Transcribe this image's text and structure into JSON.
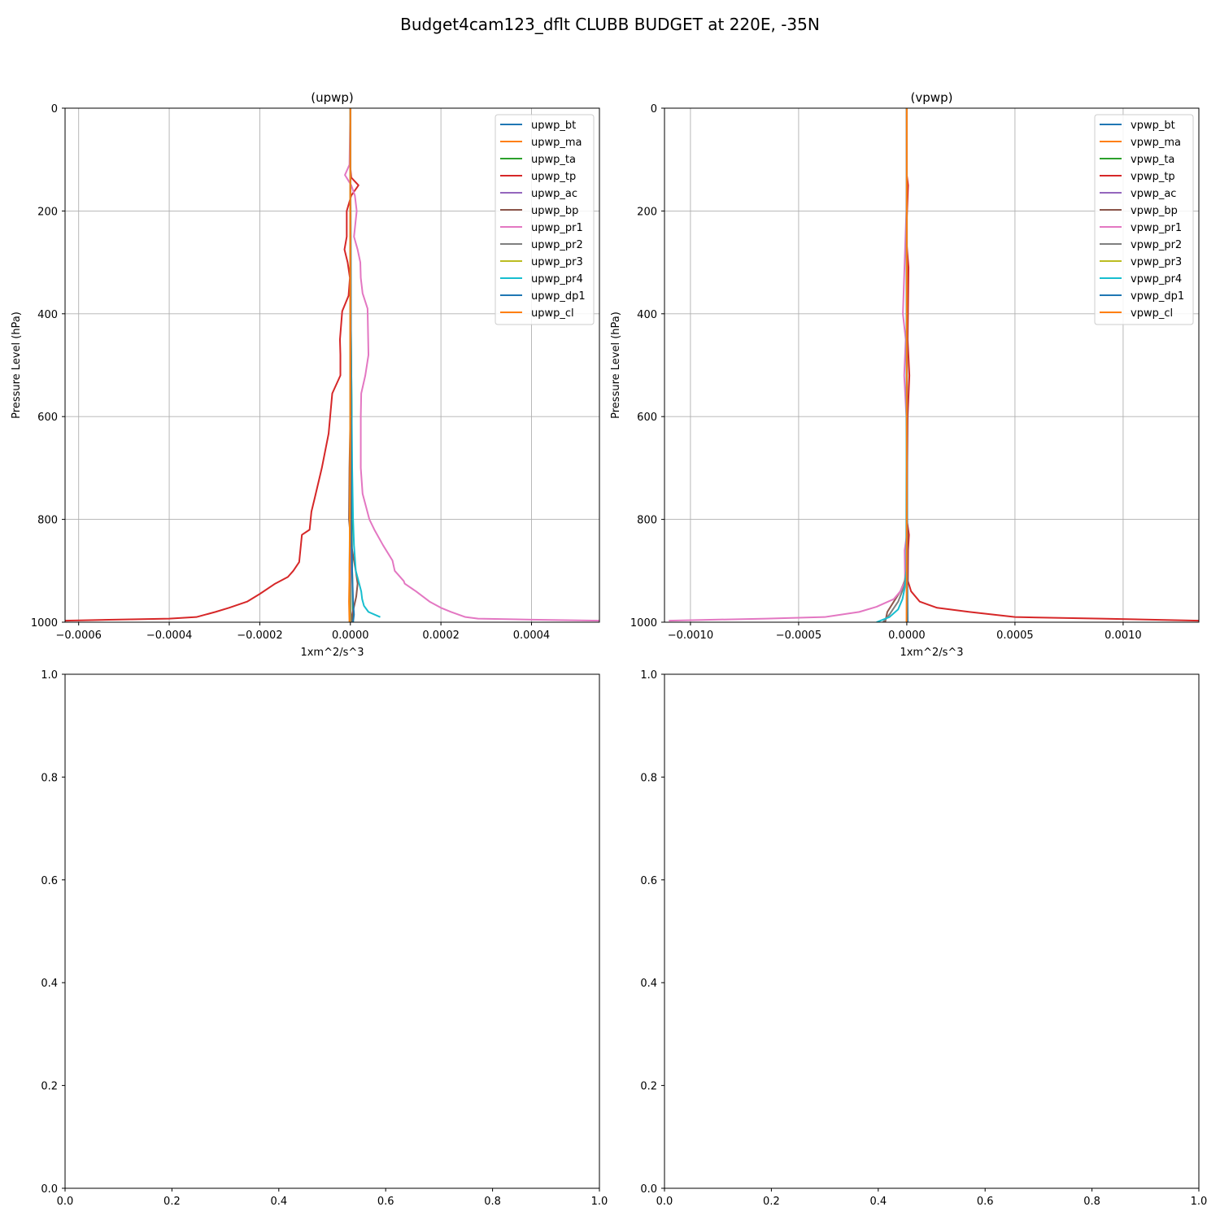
{
  "figure": {
    "title": "Budget4cam123_dflt CLUBB BUDGET at 220E, -35N"
  },
  "chart_data": [
    {
      "type": "line",
      "title": "(upwp)",
      "xlabel": "1xm^2/s^3",
      "ylabel": "Pressure Level (hPa)",
      "xlim": [
        -0.00063,
        0.00055
      ],
      "ylim": [
        1000,
        0
      ],
      "y_inverted": true,
      "grid": true,
      "legend_position": "top-right",
      "x_ticks": [
        -0.0006,
        -0.0004,
        -0.0002,
        0.0,
        0.0002,
        0.0004
      ],
      "x_tick_labels": [
        "−0.0006",
        "−0.0004",
        "−0.0002",
        "0.0000",
        "0.0002",
        "0.0004"
      ],
      "y_ticks": [
        0,
        200,
        400,
        600,
        800,
        1000
      ],
      "y_tick_labels": [
        "0",
        "200",
        "400",
        "600",
        "800",
        "1000"
      ],
      "series": [
        {
          "name": "upwp_bt",
          "color": "#1f77b4",
          "x": [
            0,
            0
          ],
          "y": [
            0,
            1000
          ]
        },
        {
          "name": "upwp_ma",
          "color": "#ff7f0e",
          "x": [
            0,
            0
          ],
          "y": [
            0,
            1000
          ]
        },
        {
          "name": "upwp_ta",
          "color": "#2ca02c",
          "x": [
            0,
            1e-06,
            2e-06,
            3e-06,
            3e-06,
            4e-06,
            6e-06
          ],
          "y": [
            0,
            400,
            500,
            600,
            800,
            900,
            1000
          ]
        },
        {
          "name": "upwp_tp",
          "color": "#d62728",
          "x": [
            0,
            0,
            2e-06,
            1.8e-05,
            2e-06,
            -8e-06,
            -8e-06,
            -1.3e-05,
            -6e-06,
            -1e-06,
            -4e-06,
            -1.8e-05,
            -2.3e-05,
            -2.2e-05,
            -2.2e-05,
            -4e-05,
            -4.8e-05,
            -6.3e-05,
            -7.8e-05,
            -8.6e-05,
            -9e-05,
            -0.000107,
            -0.000113,
            -0.000126,
            -0.000138,
            -0.000166,
            -0.0002,
            -0.000228,
            -0.000268,
            -0.000298,
            -0.00034,
            -0.0004,
            -0.00063
          ],
          "y": [
            0,
            115,
            135,
            150,
            170,
            200,
            250,
            275,
            300,
            330,
            365,
            395,
            450,
            480,
            520,
            555,
            633,
            700,
            756,
            785,
            820,
            830,
            883,
            900,
            912,
            925,
            945,
            960,
            972,
            980,
            990,
            993,
            997
          ]
        },
        {
          "name": "upwp_ac",
          "color": "#9467bd",
          "x": [
            0,
            0
          ],
          "y": [
            0,
            1000
          ]
        },
        {
          "name": "upwp_bp",
          "color": "#8c564b",
          "x": [
            0,
            0,
            -2e-06,
            -3e-06,
            2e-06,
            1.2e-05,
            1.6e-05,
            1.3e-05,
            8e-06,
            4e-06,
            2e-06
          ],
          "y": [
            0,
            600,
            700,
            800,
            850,
            900,
            925,
            950,
            970,
            985,
            1000
          ]
        },
        {
          "name": "upwp_pr1",
          "color": "#e377c2",
          "x": [
            0,
            -2e-06,
            -1.2e-05,
            2e-06,
            1e-05,
            1.4e-05,
            8e-06,
            1.6e-05,
            2.2e-05,
            2.3e-05,
            2.7e-05,
            3.8e-05,
            4e-05,
            3.3e-05,
            2.4e-05,
            2.3e-05,
            2.3e-05,
            2.7e-05,
            4.2e-05,
            5.3e-05,
            7.2e-05,
            9.3e-05,
            9.8e-05,
            0.000118,
            0.00012,
            0.000145,
            0.000175,
            0.0002,
            0.000222,
            0.000254,
            0.000282,
            0.0004,
            0.00055
          ],
          "y": [
            0,
            110,
            130,
            150,
            170,
            200,
            250,
            275,
            300,
            330,
            360,
            390,
            480,
            520,
            555,
            600,
            700,
            750,
            800,
            820,
            850,
            880,
            900,
            920,
            925,
            940,
            960,
            972,
            980,
            990,
            993,
            995,
            997
          ]
        },
        {
          "name": "upwp_pr2",
          "color": "#7f7f7f",
          "x": [
            0,
            0,
            -1e-06,
            -2e-06,
            0,
            1e-06
          ],
          "y": [
            0,
            600,
            800,
            900,
            960,
            1000
          ]
        },
        {
          "name": "upwp_pr3",
          "color": "#bcbd22",
          "x": [
            0,
            0,
            -1e-06,
            -2e-06,
            -1e-06
          ],
          "y": [
            0,
            600,
            800,
            950,
            1000
          ]
        },
        {
          "name": "upwp_pr4",
          "color": "#17becf",
          "x": [
            0,
            1e-06,
            2e-06,
            4e-06,
            6e-06,
            8e-06,
            1.2e-05,
            1.8e-05,
            2.4e-05,
            2.6e-05,
            3e-05,
            4e-05,
            6.6e-05
          ],
          "y": [
            0,
            400,
            500,
            700,
            800,
            850,
            900,
            920,
            940,
            955,
            968,
            980,
            990
          ]
        },
        {
          "name": "upwp_dp1",
          "color": "#1f77b4",
          "x": [
            0,
            2e-06,
            4e-06,
            6e-06,
            8e-06,
            6e-06
          ],
          "y": [
            0,
            800,
            900,
            960,
            985,
            1000
          ]
        },
        {
          "name": "upwp_cl",
          "color": "#ff7f0e",
          "x": [
            0,
            0,
            -1e-06,
            -3e-06,
            -2e-06
          ],
          "y": [
            0,
            600,
            850,
            960,
            1000
          ]
        }
      ]
    },
    {
      "type": "line",
      "title": "(vpwp)",
      "xlabel": "1xm^2/s^3",
      "ylabel": "Pressure Level (hPa)",
      "xlim": [
        -0.00112,
        0.00135
      ],
      "ylim": [
        1000,
        0
      ],
      "y_inverted": true,
      "grid": true,
      "legend_position": "top-right",
      "x_ticks": [
        -0.001,
        -0.0005,
        0.0,
        0.0005,
        0.001
      ],
      "x_tick_labels": [
        "−0.0010",
        "−0.0005",
        "0.0000",
        "0.0005",
        "0.0010"
      ],
      "y_ticks": [
        0,
        200,
        400,
        600,
        800,
        1000
      ],
      "y_tick_labels": [
        "0",
        "200",
        "400",
        "600",
        "800",
        "1000"
      ],
      "series": [
        {
          "name": "vpwp_bt",
          "color": "#1f77b4",
          "x": [
            0,
            0
          ],
          "y": [
            0,
            1000
          ]
        },
        {
          "name": "vpwp_ma",
          "color": "#ff7f0e",
          "x": [
            0,
            0
          ],
          "y": [
            0,
            1000
          ]
        },
        {
          "name": "vpwp_ta",
          "color": "#2ca02c",
          "x": [
            0,
            0,
            2e-06,
            3e-06
          ],
          "y": [
            0,
            600,
            900,
            1000
          ]
        },
        {
          "name": "vpwp_tp",
          "color": "#d62728",
          "x": [
            0,
            0,
            6e-06,
            -3e-06,
            8e-06,
            4e-06,
            1.2e-05,
            4e-06,
            0,
            1e-05,
            6e-06,
            5e-06,
            2e-05,
            6e-05,
            0.00014,
            0.00029,
            0.0005,
            0.0009,
            0.00135
          ],
          "y": [
            0,
            130,
            150,
            250,
            310,
            450,
            520,
            600,
            800,
            830,
            860,
            920,
            940,
            960,
            972,
            980,
            990,
            993,
            997
          ]
        },
        {
          "name": "vpwp_ac",
          "color": "#9467bd",
          "x": [
            0,
            0
          ],
          "y": [
            0,
            1000
          ]
        },
        {
          "name": "vpwp_bp",
          "color": "#8c564b",
          "x": [
            0,
            -2e-06,
            -1e-05,
            -3e-05,
            -6e-05,
            -9e-05,
            -0.0001
          ],
          "y": [
            0,
            900,
            920,
            940,
            960,
            980,
            1000
          ]
        },
        {
          "name": "vpwp_pr1",
          "color": "#e377c2",
          "x": [
            0,
            -2e-06,
            -1e-05,
            -1.8e-05,
            -5e-06,
            -1.2e-05,
            -2e-06,
            0,
            0,
            -1e-05,
            -8e-06,
            -3e-05,
            -6e-05,
            -0.00014,
            -0.00022,
            -0.00038,
            -0.00065,
            -0.0011
          ],
          "y": [
            0,
            200,
            300,
            400,
            450,
            520,
            600,
            800,
            830,
            860,
            920,
            940,
            955,
            970,
            980,
            990,
            993,
            997
          ]
        },
        {
          "name": "vpwp_pr2",
          "color": "#7f7f7f",
          "x": [
            0,
            -2e-06,
            -1.2e-05,
            -4e-05,
            -8e-05,
            -0.00011
          ],
          "y": [
            0,
            900,
            930,
            960,
            985,
            1000
          ]
        },
        {
          "name": "vpwp_pr3",
          "color": "#bcbd22",
          "x": [
            0,
            0,
            1e-06
          ],
          "y": [
            0,
            800,
            1000
          ]
        },
        {
          "name": "vpwp_pr4",
          "color": "#17becf",
          "x": [
            0,
            -2e-06,
            -8e-06,
            -2e-05,
            -4e-05,
            -8e-05,
            -0.00014
          ],
          "y": [
            0,
            900,
            930,
            955,
            975,
            990,
            1000
          ]
        },
        {
          "name": "vpwp_dp1",
          "color": "#1f77b4",
          "x": [
            0,
            2e-06,
            4e-06
          ],
          "y": [
            0,
            900,
            1000
          ]
        },
        {
          "name": "vpwp_cl",
          "color": "#ff7f0e",
          "x": [
            0,
            0,
            -1e-06
          ],
          "y": [
            0,
            900,
            1000
          ]
        }
      ]
    },
    {
      "type": "line",
      "title": "",
      "xlim": [
        0,
        1
      ],
      "ylim": [
        0,
        1
      ],
      "grid": false,
      "x_ticks": [
        0.0,
        0.2,
        0.4,
        0.6,
        0.8,
        1.0
      ],
      "x_tick_labels": [
        "0.0",
        "0.2",
        "0.4",
        "0.6",
        "0.8",
        "1.0"
      ],
      "y_ticks": [
        0.0,
        0.2,
        0.4,
        0.6,
        0.8,
        1.0
      ],
      "y_tick_labels": [
        "0.0",
        "0.2",
        "0.4",
        "0.6",
        "0.8",
        "1.0"
      ],
      "series": []
    },
    {
      "type": "line",
      "title": "",
      "xlim": [
        0,
        1
      ],
      "ylim": [
        0,
        1
      ],
      "grid": false,
      "x_ticks": [
        0.0,
        0.2,
        0.4,
        0.6,
        0.8,
        1.0
      ],
      "x_tick_labels": [
        "0.0",
        "0.2",
        "0.4",
        "0.6",
        "0.8",
        "1.0"
      ],
      "y_ticks": [
        0.0,
        0.2,
        0.4,
        0.6,
        0.8,
        1.0
      ],
      "y_tick_labels": [
        "0.0",
        "0.2",
        "0.4",
        "0.6",
        "0.8",
        "1.0"
      ],
      "series": []
    }
  ]
}
